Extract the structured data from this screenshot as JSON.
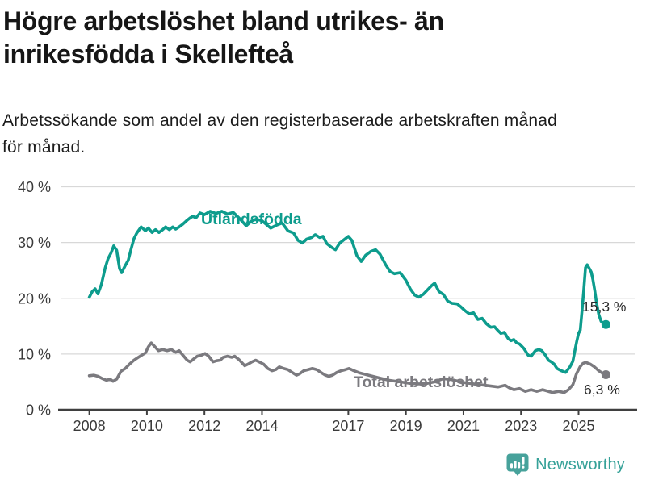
{
  "header": {
    "title": "Högre arbetslöshet bland utrikes- än inrikesfödda i Skellefteå",
    "title_lines": [
      "Högre arbetslöshet bland utrikes- än",
      "inrikesfödda i Skellefteå"
    ],
    "subtitle": "Arbetssökande som andel av den registerbaserade arbetskraften månad för månad.",
    "subtitle_lines": [
      "Arbetssökande som andel av den registerbaserade arbetskraften månad",
      "för månad."
    ]
  },
  "footer": {
    "brand": "Newsworthy",
    "brand_color": "#35a198",
    "logo_icon": "newsworthy-bar-chart-bubble-icon",
    "logo_color": "#47a29b"
  },
  "colors": {
    "accent_teal": "#0d9c8d",
    "line_gray": "#7b7a7f",
    "gridline": "#d8d8d8",
    "axis": "#3f3f3f",
    "tick_label": "#3a3a3a",
    "annotation": "#2b2b2b",
    "background": "#ffffff"
  },
  "chart_data": {
    "type": "line",
    "title": "Högre arbetslöshet bland utrikes- än inrikesfödda i Skellefteå",
    "subtitle": "Arbetssökande som andel av den registerbaserade arbetskraften månad för månad.",
    "xlabel": "",
    "ylabel": "",
    "unit": "%",
    "grid": true,
    "legend_position": "inline-on-line",
    "xlim": [
      2007.0,
      2026.95
    ],
    "ylim": [
      0,
      40
    ],
    "yticks": {
      "values": [
        0,
        10,
        20,
        30,
        40
      ],
      "labels": [
        "0 %",
        "10 %",
        "20 %",
        "30 %",
        "40 %"
      ]
    },
    "xticks": {
      "values": [
        2008,
        2010,
        2012,
        2014,
        2017,
        2019,
        2021,
        2023,
        2025
      ],
      "labels": [
        "2008",
        "2010",
        "2012",
        "2014",
        "2017",
        "2019",
        "2021",
        "2023",
        "2025"
      ]
    },
    "series": [
      {
        "name": "Utlandsfödda",
        "color": "#0d9c8d",
        "end_label": "15,3 %",
        "end_value": 15.3,
        "points": [
          [
            2008.0,
            20.2
          ],
          [
            2008.1,
            21.2
          ],
          [
            2008.2,
            21.7
          ],
          [
            2008.3,
            20.8
          ],
          [
            2008.42,
            22.5
          ],
          [
            2008.55,
            25.4
          ],
          [
            2008.65,
            27.1
          ],
          [
            2008.75,
            28.1
          ],
          [
            2008.85,
            29.4
          ],
          [
            2008.95,
            28.6
          ],
          [
            2009.05,
            25.3
          ],
          [
            2009.12,
            24.6
          ],
          [
            2009.25,
            25.9
          ],
          [
            2009.35,
            26.8
          ],
          [
            2009.45,
            28.8
          ],
          [
            2009.55,
            30.7
          ],
          [
            2009.65,
            31.7
          ],
          [
            2009.8,
            32.8
          ],
          [
            2009.95,
            32.1
          ],
          [
            2010.05,
            32.6
          ],
          [
            2010.18,
            31.8
          ],
          [
            2010.3,
            32.3
          ],
          [
            2010.42,
            31.8
          ],
          [
            2010.55,
            32.3
          ],
          [
            2010.65,
            32.8
          ],
          [
            2010.78,
            32.3
          ],
          [
            2010.9,
            32.8
          ],
          [
            2011.0,
            32.4
          ],
          [
            2011.12,
            32.8
          ],
          [
            2011.25,
            33.3
          ],
          [
            2011.4,
            34.0
          ],
          [
            2011.5,
            34.4
          ],
          [
            2011.6,
            34.7
          ],
          [
            2011.7,
            34.4
          ],
          [
            2011.85,
            35.3
          ],
          [
            2012.0,
            35.0
          ],
          [
            2012.2,
            35.6
          ],
          [
            2012.4,
            35.2
          ],
          [
            2012.6,
            35.6
          ],
          [
            2012.8,
            35.1
          ],
          [
            2013.0,
            35.4
          ],
          [
            2013.2,
            34.4
          ],
          [
            2013.45,
            33.0
          ],
          [
            2013.62,
            33.8
          ],
          [
            2013.8,
            34.2
          ],
          [
            2014.0,
            33.9
          ],
          [
            2014.3,
            32.6
          ],
          [
            2014.5,
            33.1
          ],
          [
            2014.7,
            33.5
          ],
          [
            2014.9,
            32.1
          ],
          [
            2015.1,
            31.7
          ],
          [
            2015.25,
            30.4
          ],
          [
            2015.4,
            29.9
          ],
          [
            2015.55,
            30.6
          ],
          [
            2015.72,
            30.9
          ],
          [
            2015.85,
            31.4
          ],
          [
            2016.0,
            30.9
          ],
          [
            2016.12,
            31.1
          ],
          [
            2016.25,
            29.8
          ],
          [
            2016.4,
            29.2
          ],
          [
            2016.55,
            28.7
          ],
          [
            2016.7,
            29.9
          ],
          [
            2016.85,
            30.5
          ],
          [
            2017.0,
            31.1
          ],
          [
            2017.12,
            30.4
          ],
          [
            2017.3,
            27.6
          ],
          [
            2017.45,
            26.6
          ],
          [
            2017.6,
            27.7
          ],
          [
            2017.78,
            28.4
          ],
          [
            2017.95,
            28.7
          ],
          [
            2018.1,
            27.9
          ],
          [
            2018.3,
            26.0
          ],
          [
            2018.45,
            24.8
          ],
          [
            2018.6,
            24.4
          ],
          [
            2018.8,
            24.6
          ],
          [
            2019.0,
            23.2
          ],
          [
            2019.15,
            21.7
          ],
          [
            2019.3,
            20.6
          ],
          [
            2019.45,
            20.2
          ],
          [
            2019.6,
            20.7
          ],
          [
            2019.75,
            21.5
          ],
          [
            2019.9,
            22.3
          ],
          [
            2020.0,
            22.7
          ],
          [
            2020.15,
            21.2
          ],
          [
            2020.3,
            20.7
          ],
          [
            2020.45,
            19.5
          ],
          [
            2020.6,
            19.1
          ],
          [
            2020.78,
            19.0
          ],
          [
            2020.9,
            18.5
          ],
          [
            2021.05,
            17.8
          ],
          [
            2021.2,
            17.2
          ],
          [
            2021.35,
            17.4
          ],
          [
            2021.5,
            16.2
          ],
          [
            2021.65,
            16.4
          ],
          [
            2021.8,
            15.4
          ],
          [
            2021.95,
            14.8
          ],
          [
            2022.08,
            14.9
          ],
          [
            2022.2,
            14.2
          ],
          [
            2022.3,
            13.7
          ],
          [
            2022.42,
            13.9
          ],
          [
            2022.55,
            12.8
          ],
          [
            2022.65,
            12.4
          ],
          [
            2022.75,
            12.6
          ],
          [
            2022.85,
            12.0
          ],
          [
            2022.95,
            11.8
          ],
          [
            2023.1,
            11.0
          ],
          [
            2023.25,
            9.8
          ],
          [
            2023.35,
            9.6
          ],
          [
            2023.5,
            10.6
          ],
          [
            2023.62,
            10.8
          ],
          [
            2023.72,
            10.6
          ],
          [
            2023.85,
            9.8
          ],
          [
            2023.95,
            8.9
          ],
          [
            2024.05,
            8.6
          ],
          [
            2024.15,
            8.2
          ],
          [
            2024.25,
            7.4
          ],
          [
            2024.4,
            7.0
          ],
          [
            2024.55,
            6.7
          ],
          [
            2024.7,
            7.7
          ],
          [
            2024.8,
            8.7
          ],
          [
            2024.88,
            10.8
          ],
          [
            2024.94,
            12.4
          ],
          [
            2025.0,
            13.7
          ],
          [
            2025.06,
            14.3
          ],
          [
            2025.12,
            17.8
          ],
          [
            2025.18,
            21.4
          ],
          [
            2025.24,
            25.5
          ],
          [
            2025.3,
            26.0
          ],
          [
            2025.38,
            25.3
          ],
          [
            2025.44,
            24.7
          ],
          [
            2025.5,
            23.3
          ],
          [
            2025.56,
            21.4
          ],
          [
            2025.62,
            19.3
          ],
          [
            2025.7,
            17.1
          ],
          [
            2025.78,
            15.9
          ],
          [
            2025.87,
            15.4
          ],
          [
            2025.95,
            15.3
          ]
        ]
      },
      {
        "name": "Total arbetslöshet",
        "color": "#7b7a7f",
        "end_label": "6,3 %",
        "end_value": 6.3,
        "points": [
          [
            2008.0,
            6.1
          ],
          [
            2008.15,
            6.2
          ],
          [
            2008.3,
            6.0
          ],
          [
            2008.45,
            5.6
          ],
          [
            2008.6,
            5.3
          ],
          [
            2008.72,
            5.5
          ],
          [
            2008.82,
            5.1
          ],
          [
            2008.95,
            5.5
          ],
          [
            2009.1,
            6.9
          ],
          [
            2009.25,
            7.4
          ],
          [
            2009.4,
            8.2
          ],
          [
            2009.55,
            8.9
          ],
          [
            2009.7,
            9.4
          ],
          [
            2009.85,
            9.9
          ],
          [
            2009.95,
            10.2
          ],
          [
            2010.05,
            11.3
          ],
          [
            2010.15,
            12.0
          ],
          [
            2010.28,
            11.3
          ],
          [
            2010.4,
            10.6
          ],
          [
            2010.55,
            10.8
          ],
          [
            2010.7,
            10.6
          ],
          [
            2010.85,
            10.8
          ],
          [
            2011.0,
            10.3
          ],
          [
            2011.12,
            10.6
          ],
          [
            2011.25,
            9.8
          ],
          [
            2011.4,
            8.9
          ],
          [
            2011.5,
            8.6
          ],
          [
            2011.62,
            9.1
          ],
          [
            2011.75,
            9.6
          ],
          [
            2011.9,
            9.8
          ],
          [
            2012.02,
            10.1
          ],
          [
            2012.15,
            9.6
          ],
          [
            2012.3,
            8.6
          ],
          [
            2012.42,
            8.8
          ],
          [
            2012.55,
            8.9
          ],
          [
            2012.65,
            9.4
          ],
          [
            2012.8,
            9.6
          ],
          [
            2012.95,
            9.4
          ],
          [
            2013.05,
            9.6
          ],
          [
            2013.2,
            9.0
          ],
          [
            2013.4,
            7.9
          ],
          [
            2013.52,
            8.2
          ],
          [
            2013.65,
            8.6
          ],
          [
            2013.78,
            8.9
          ],
          [
            2013.9,
            8.6
          ],
          [
            2014.05,
            8.2
          ],
          [
            2014.2,
            7.4
          ],
          [
            2014.35,
            7.0
          ],
          [
            2014.48,
            7.2
          ],
          [
            2014.6,
            7.7
          ],
          [
            2014.75,
            7.4
          ],
          [
            2014.9,
            7.2
          ],
          [
            2015.05,
            6.7
          ],
          [
            2015.2,
            6.2
          ],
          [
            2015.32,
            6.5
          ],
          [
            2015.45,
            7.0
          ],
          [
            2015.6,
            7.2
          ],
          [
            2015.75,
            7.4
          ],
          [
            2015.9,
            7.2
          ],
          [
            2016.05,
            6.7
          ],
          [
            2016.2,
            6.2
          ],
          [
            2016.32,
            6.0
          ],
          [
            2016.45,
            6.2
          ],
          [
            2016.6,
            6.7
          ],
          [
            2016.75,
            7.0
          ],
          [
            2016.9,
            7.2
          ],
          [
            2017.02,
            7.4
          ],
          [
            2017.15,
            7.1
          ],
          [
            2017.4,
            6.6
          ],
          [
            2017.7,
            6.2
          ],
          [
            2018.0,
            5.8
          ],
          [
            2018.4,
            5.3
          ],
          [
            2018.8,
            5.0
          ],
          [
            2019.2,
            4.7
          ],
          [
            2019.6,
            4.6
          ],
          [
            2020.0,
            5.0
          ],
          [
            2020.3,
            5.6
          ],
          [
            2020.6,
            5.4
          ],
          [
            2021.0,
            4.9
          ],
          [
            2021.4,
            4.6
          ],
          [
            2021.9,
            4.3
          ],
          [
            2022.2,
            4.1
          ],
          [
            2022.45,
            4.4
          ],
          [
            2022.6,
            3.9
          ],
          [
            2022.75,
            3.6
          ],
          [
            2022.95,
            3.8
          ],
          [
            2023.15,
            3.3
          ],
          [
            2023.35,
            3.6
          ],
          [
            2023.55,
            3.3
          ],
          [
            2023.75,
            3.6
          ],
          [
            2023.95,
            3.3
          ],
          [
            2024.1,
            3.1
          ],
          [
            2024.3,
            3.3
          ],
          [
            2024.5,
            3.1
          ],
          [
            2024.65,
            3.6
          ],
          [
            2024.8,
            4.5
          ],
          [
            2024.93,
            6.5
          ],
          [
            2025.05,
            7.7
          ],
          [
            2025.15,
            8.3
          ],
          [
            2025.25,
            8.5
          ],
          [
            2025.4,
            8.2
          ],
          [
            2025.55,
            7.7
          ],
          [
            2025.7,
            7.0
          ],
          [
            2025.85,
            6.5
          ],
          [
            2025.95,
            6.3
          ]
        ]
      }
    ]
  }
}
